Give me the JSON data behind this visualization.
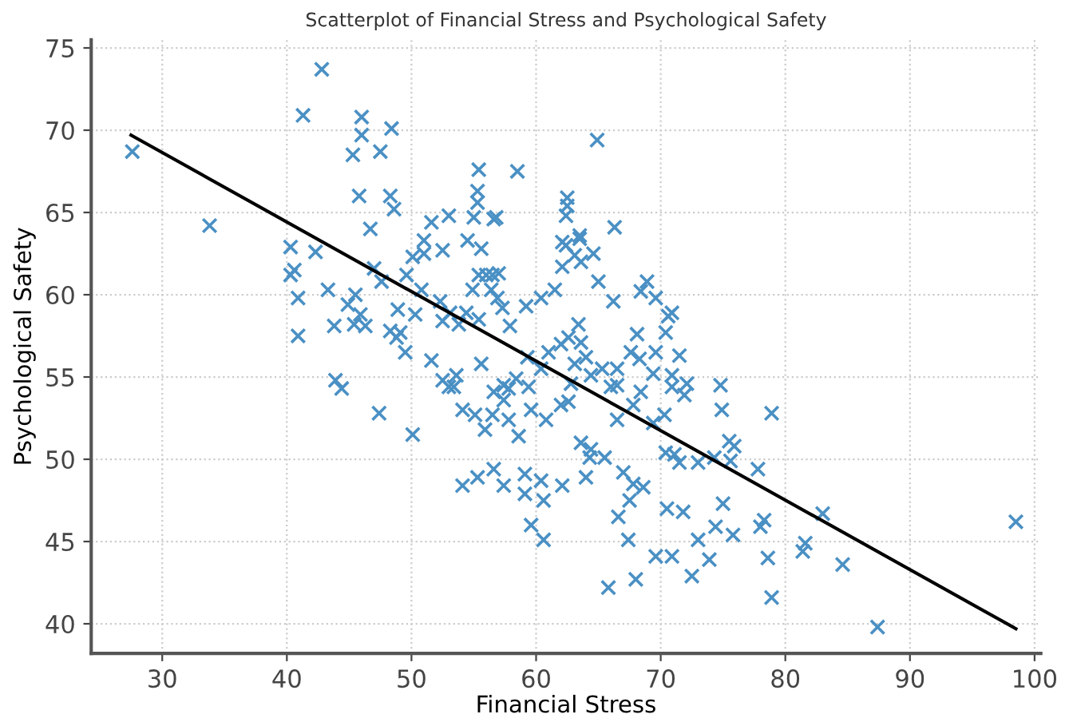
{
  "chart_data": {
    "type": "scatter",
    "title": "Scatterplot of Financial Stress and Psychological Safety",
    "xlabel": "Financial Stress",
    "ylabel": "Psychological Safety",
    "xlim": [
      24.3,
      100.5
    ],
    "ylim": [
      38.2,
      75.5
    ],
    "xticks": [
      30,
      40,
      50,
      60,
      70,
      80,
      90,
      100
    ],
    "yticks": [
      40,
      45,
      50,
      55,
      60,
      65,
      70,
      75
    ],
    "grid": true,
    "legend": false,
    "series": [
      {
        "color": "#4a90c4",
        "marker": "cross",
        "x": [
          27.6,
          33.8,
          42.8,
          41.3,
          46,
          48.4,
          46,
          45.3,
          47.5,
          58.5,
          55.4,
          64.9,
          45.8,
          48.3,
          48.6,
          62.5,
          62.5,
          62.4,
          66.3,
          40.3,
          42.3,
          40.6,
          46.7,
          51.6,
          53,
          55,
          55.3,
          56.8,
          51,
          52.5,
          51,
          54.5,
          50.1,
          49.6,
          47,
          47.6,
          43.3,
          44.9,
          45.5,
          40.9,
          40.3,
          40.9,
          43.8,
          45.4,
          45.9,
          46.3,
          43.9,
          44.4,
          47.4,
          50.1,
          49.1,
          48.8,
          48.3,
          48.9,
          50.3,
          50.8,
          52.3,
          52.5,
          53.8,
          53.1,
          54.4,
          55.4,
          54.9,
          55.4,
          56,
          56.5,
          57,
          56.4,
          56.9,
          57.3,
          57.9,
          59.2,
          60.4,
          61.5,
          62.1,
          62.1,
          63.5,
          63.1,
          64.6,
          65,
          66.2,
          68.4,
          68.9,
          71.5,
          74.8,
          49.5,
          51.6,
          52.5,
          53.6,
          53,
          55.6,
          56.6,
          57.8,
          58.4,
          59.4,
          59.3,
          60.4,
          61,
          62,
          62.6,
          63.4,
          63.6,
          64,
          63.1,
          62.8,
          64.4,
          65.3,
          66,
          66.5,
          67.6,
          68.1,
          69.6,
          70.4,
          70.9,
          72.1,
          70.9,
          70.3,
          69.4,
          67.8,
          66.5,
          68.4,
          65.5,
          67,
          67.8,
          68.6,
          67.5,
          64.4,
          63.6,
          62,
          62.6,
          60.8,
          59.6,
          58.6,
          57.8,
          57.4,
          57.4,
          56.5,
          55.9,
          55.1,
          54.1,
          53.4,
          55.3,
          54.1,
          56.6,
          57.4,
          59.1,
          60.6,
          59.6,
          60.6,
          59.1,
          60.4,
          62.1,
          64,
          64.3,
          66.6,
          67.4,
          65.8,
          68,
          69.6,
          70.9,
          70.5,
          71.8,
          73,
          74.4,
          72.5,
          73.9,
          75.8,
          75,
          78,
          78.6,
          78.9,
          81.4,
          81.6,
          83,
          84.6,
          87.4,
          98.5,
          78.3,
          77.8,
          75.9,
          75.6,
          74.3,
          74.9,
          75.5,
          78.9,
          71.9,
          71.1,
          70.4,
          71.5,
          73,
          55.3,
          56.6,
          55.6,
          63.5,
          62.4,
          63.6,
          69.6,
          70.6,
          68.3,
          69.4,
          70.9,
          66.5
        ],
        "values": [
          68.7,
          64.2,
          73.7,
          70.9,
          70.8,
          70.1,
          69.7,
          68.5,
          68.7,
          67.5,
          67.6,
          69.4,
          66,
          66,
          65.2,
          65.9,
          65.4,
          64.8,
          64.1,
          62.9,
          62.6,
          61.5,
          64,
          64.4,
          64.8,
          64.7,
          66.3,
          64.7,
          63.3,
          62.7,
          62.5,
          63.3,
          62.3,
          61.2,
          61.6,
          60.8,
          60.3,
          59.4,
          60,
          59.8,
          61.2,
          57.5,
          58.1,
          58.2,
          58.8,
          58.1,
          54.8,
          54.3,
          52.8,
          51.5,
          57.7,
          57.4,
          57.8,
          59.1,
          58.8,
          60.3,
          59.6,
          58.4,
          58.2,
          58.9,
          58.9,
          58.5,
          60.3,
          61.2,
          61.2,
          61.2,
          61.3,
          60.3,
          59.8,
          59.2,
          58.1,
          59.3,
          59.8,
          60.3,
          61.7,
          63.2,
          63.4,
          62.4,
          62.5,
          60.8,
          59.6,
          60.2,
          60.8,
          56.3,
          54.5,
          56.5,
          56,
          54.8,
          55.1,
          54.4,
          55.8,
          54.1,
          54.3,
          54.9,
          54.4,
          56.2,
          55.5,
          56.5,
          57,
          57.4,
          58.2,
          57.1,
          56.2,
          55.8,
          54.6,
          55.1,
          55.5,
          54.4,
          55.5,
          56.5,
          57.6,
          56.5,
          57.7,
          58.9,
          54.6,
          55.1,
          52.7,
          52.2,
          53.3,
          52.4,
          54.1,
          50.1,
          49.2,
          48.5,
          48.3,
          47.5,
          50.6,
          51,
          53.3,
          53.5,
          52.4,
          53,
          51.4,
          52.4,
          53.6,
          54.5,
          52.7,
          51.8,
          52.7,
          53,
          54.4,
          48.9,
          48.4,
          49.4,
          48.4,
          47.9,
          47.5,
          46,
          45.1,
          49.1,
          48.7,
          48.4,
          48.9,
          50.1,
          46.5,
          45.1,
          42.2,
          42.7,
          44.1,
          44.1,
          47,
          46.8,
          45.1,
          45.9,
          42.9,
          43.9,
          45.4,
          47.3,
          45.9,
          44,
          41.6,
          44.4,
          44.9,
          46.7,
          43.6,
          39.8,
          46.2,
          46.3,
          49.4,
          50.8,
          49.9,
          50.1,
          53,
          51.1,
          52.8,
          53.9,
          50.3,
          50.4,
          49.8,
          49.8,
          65.6,
          64.6,
          62.8,
          63.6,
          63,
          62,
          59.8,
          58.7,
          56.1,
          55.2,
          54.4,
          54.5
        ]
      },
      {
        "type": "line",
        "color": "#000000",
        "marker": "none",
        "line_style": "solid",
        "x": [
          27.5,
          98.5
        ],
        "values": [
          69.7,
          39.7
        ]
      }
    ]
  }
}
